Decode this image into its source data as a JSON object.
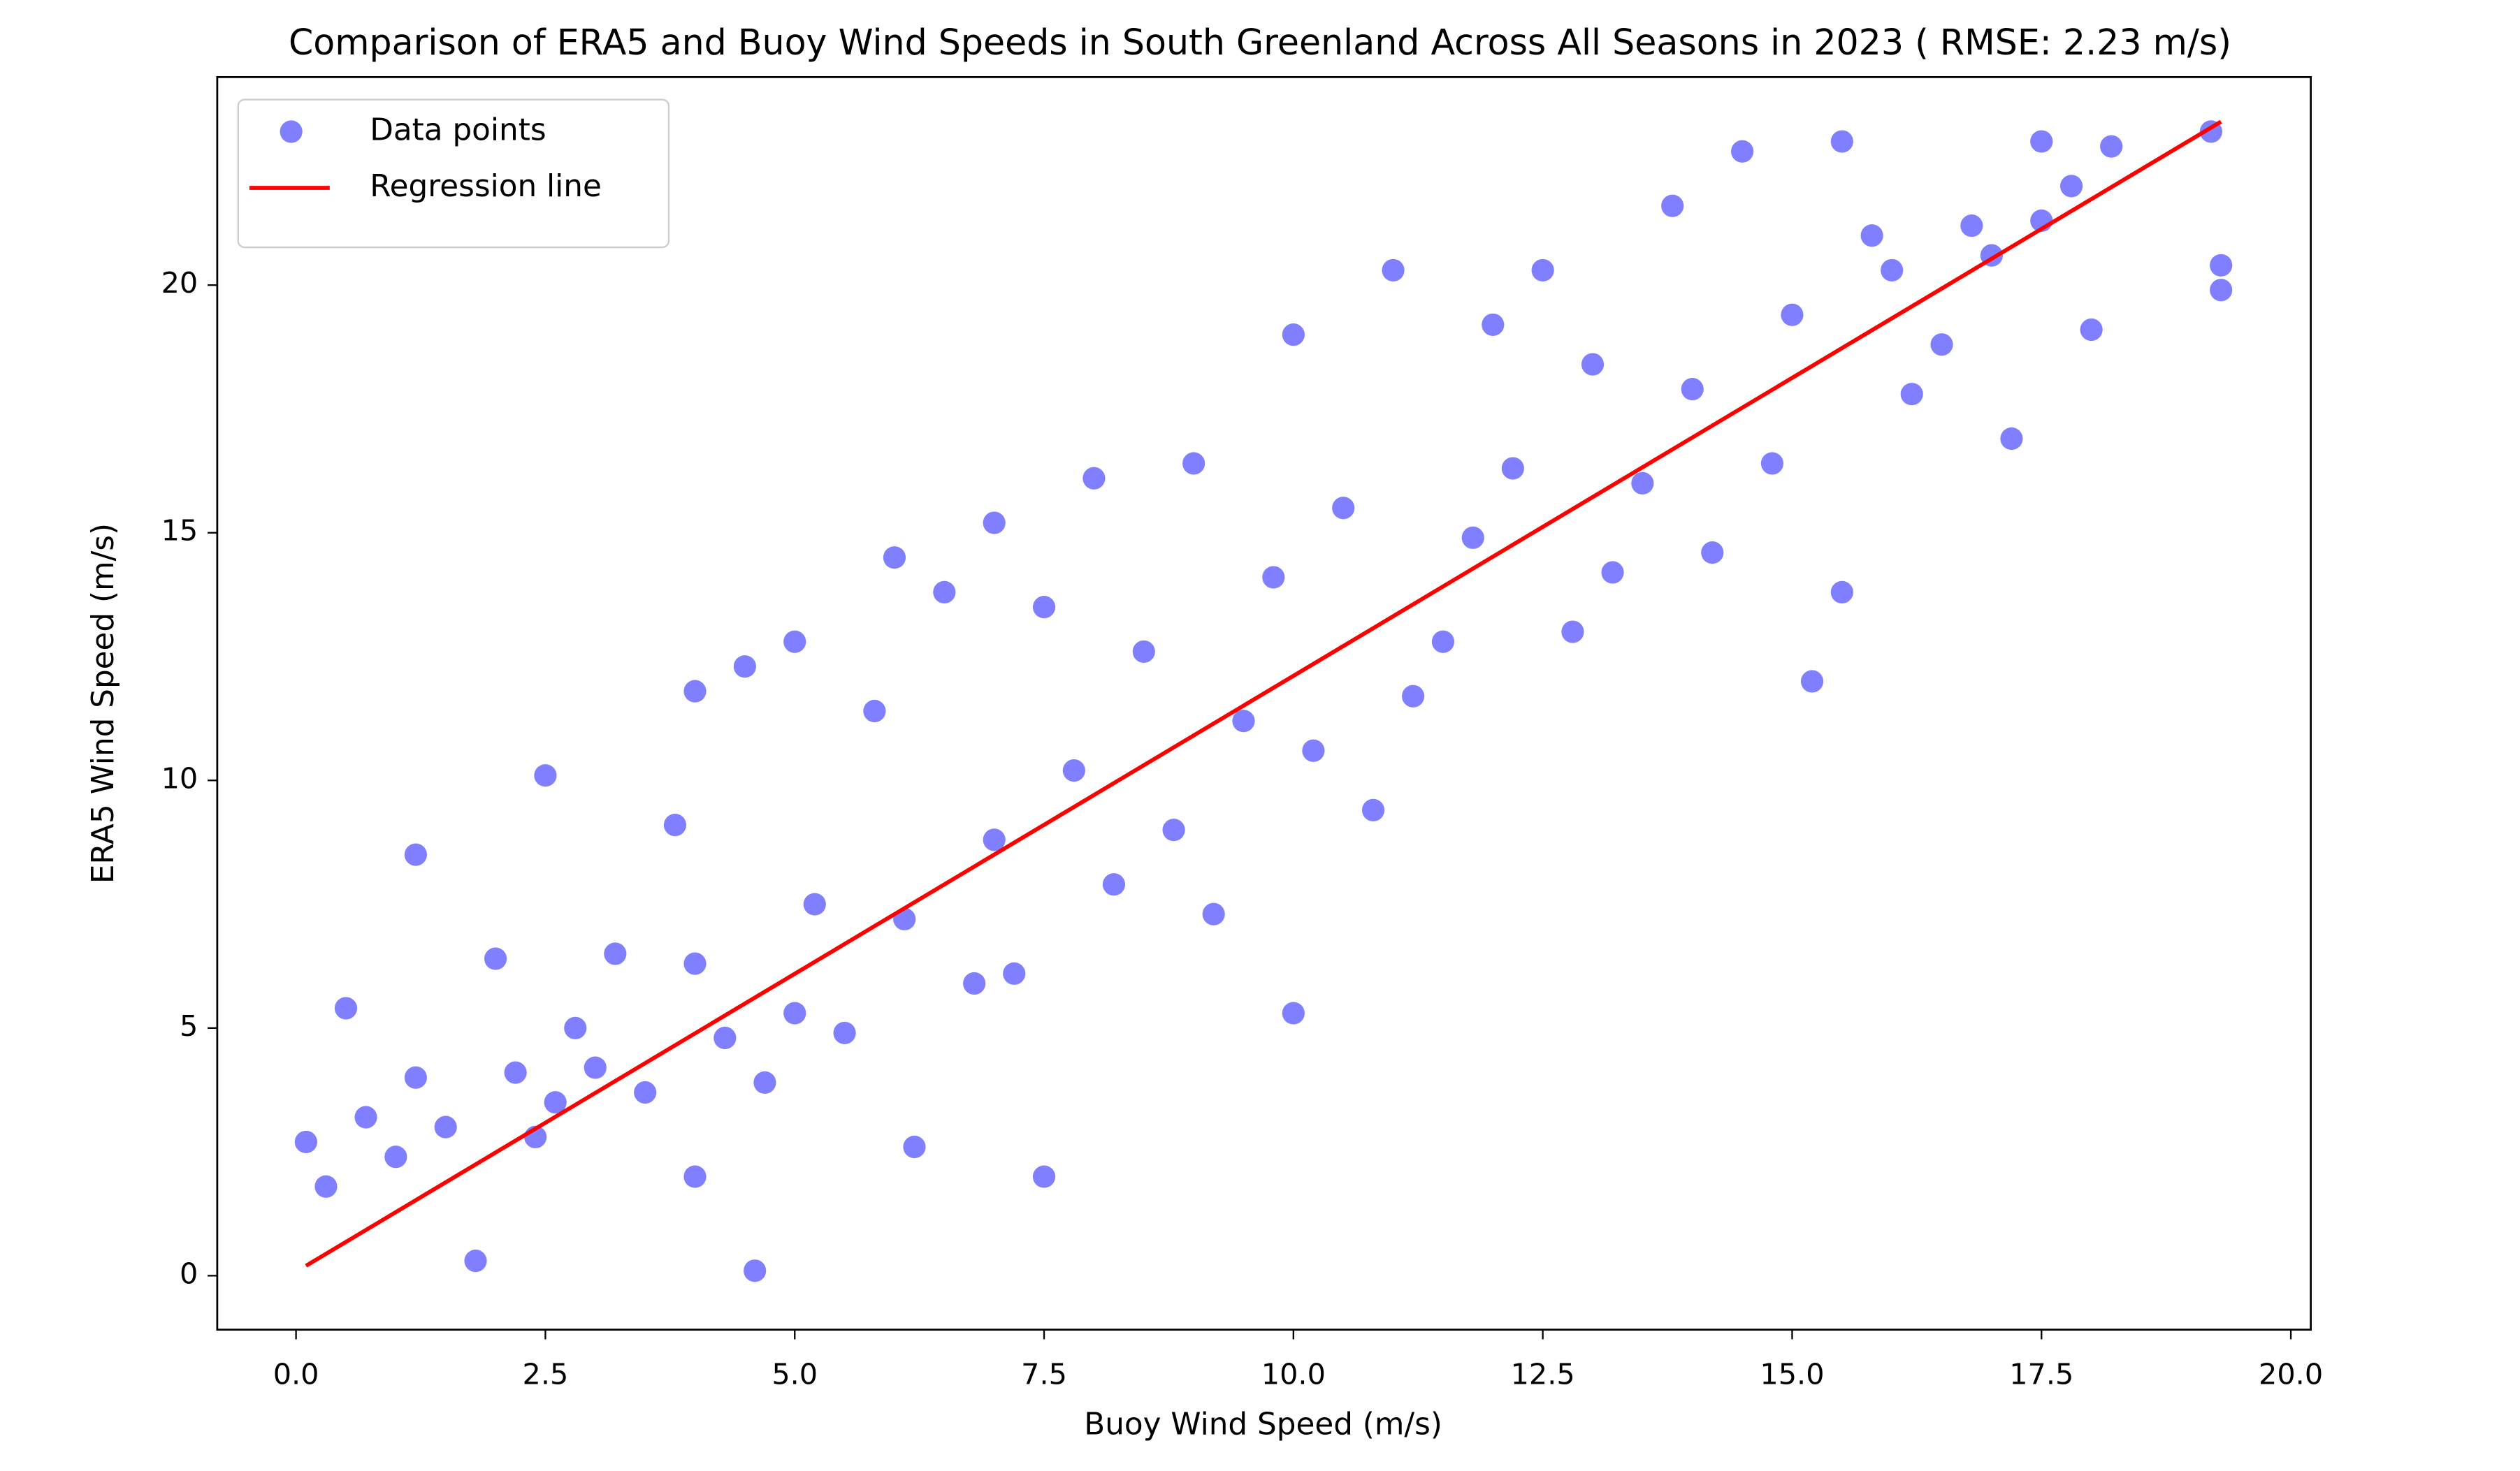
{
  "chart_data": {
    "type": "scatter",
    "title": "Comparison of ERA5 and Buoy Wind Speeds in South Greenland Across All Seasons in 2023 ( RMSE: 2.23 m/s)",
    "x_label": "Buoy Wind Speed (m/s)",
    "y_label": "ERA5 Wind Speed (m/s)",
    "xlim": [
      -0.79,
      20.2
    ],
    "ylim": [
      -1.09,
      24.2
    ],
    "xticks": [
      {
        "value": 0,
        "label": "0.0"
      },
      2.5,
      {
        "value": 5,
        "label": "5.0"
      },
      7.5,
      {
        "value": 10,
        "label": "10.0"
      },
      12.5,
      {
        "value": 15,
        "label": "15.0"
      },
      17.5,
      {
        "value": 20,
        "label": "20.0"
      }
    ],
    "yticks": [
      0,
      5,
      10,
      15,
      20
    ],
    "grid": false,
    "legend": "upper left",
    "series": [
      {
        "name": "Data points",
        "type": "scatter",
        "color": "#0000ff",
        "alpha": 0.5,
        "x": [
          0.1,
          0.3,
          0.5,
          0.7,
          1.0,
          1.2,
          1.2,
          1.5,
          1.8,
          2.0,
          2.2,
          2.4,
          2.5,
          2.6,
          2.8,
          3.0,
          3.2,
          3.5,
          3.8,
          4.0,
          4.0,
          4.0,
          4.3,
          4.5,
          4.6,
          4.7,
          5.0,
          5.0,
          5.2,
          5.5,
          5.8,
          6.0,
          6.1,
          6.2,
          6.5,
          6.8,
          7.0,
          7.0,
          7.2,
          7.5,
          7.5,
          7.8,
          8.0,
          8.2,
          8.5,
          8.8,
          9.0,
          9.2,
          9.5,
          9.8,
          10.0,
          10.0,
          10.2,
          10.5,
          10.8,
          11.0,
          11.2,
          11.5,
          11.8,
          12.0,
          12.2,
          12.5,
          12.8,
          13.0,
          13.2,
          13.5,
          13.8,
          14.0,
          14.2,
          14.5,
          14.8,
          15.0,
          15.2,
          15.5,
          15.5,
          15.8,
          16.0,
          16.2,
          16.5,
          16.8,
          17.0,
          17.2,
          17.5,
          17.5,
          17.8,
          18.0,
          18.2,
          19.2,
          19.3,
          19.3
        ],
        "values": [
          2.7,
          1.8,
          5.4,
          3.2,
          2.4,
          8.5,
          4.0,
          3.0,
          0.3,
          6.4,
          4.1,
          2.8,
          10.1,
          3.5,
          5.0,
          4.2,
          6.5,
          3.7,
          9.1,
          11.8,
          2.0,
          6.3,
          4.8,
          12.3,
          0.1,
          3.9,
          12.8,
          5.3,
          7.5,
          4.9,
          11.4,
          14.5,
          7.2,
          2.6,
          13.8,
          5.9,
          15.2,
          8.8,
          6.1,
          13.5,
          2.0,
          10.2,
          16.1,
          7.9,
          12.6,
          9.0,
          16.4,
          7.3,
          11.2,
          14.1,
          19.0,
          5.3,
          10.6,
          15.5,
          9.4,
          20.3,
          11.7,
          12.8,
          14.9,
          19.2,
          16.3,
          20.3,
          13.0,
          18.4,
          14.2,
          16.0,
          21.6,
          17.9,
          14.6,
          22.7,
          16.4,
          19.4,
          12.0,
          22.9,
          13.8,
          21.0,
          20.3,
          17.8,
          18.8,
          21.2,
          20.6,
          16.9,
          22.9,
          21.3,
          22.0,
          19.1,
          22.8,
          23.1,
          20.4,
          19.9
        ]
      },
      {
        "name": "Regression line",
        "type": "line",
        "color": "#ff0000",
        "x": [
          0.1,
          19.3
        ],
        "values": [
          0.2,
          23.3
        ]
      }
    ]
  }
}
